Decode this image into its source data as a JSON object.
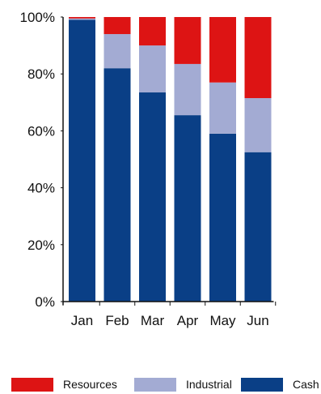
{
  "chart_data": {
    "type": "bar",
    "stacked": true,
    "categories": [
      "Jan",
      "Feb",
      "Mar",
      "Apr",
      "May",
      "Jun"
    ],
    "series": [
      {
        "name": "Cash",
        "color": "#0a3f86",
        "values": [
          99,
          82,
          73.5,
          65.5,
          59,
          52.5
        ]
      },
      {
        "name": "Industrial",
        "color": "#a3abd3",
        "values": [
          0.5,
          12,
          16.5,
          18,
          18,
          19
        ]
      },
      {
        "name": "Resources",
        "color": "#dd1414",
        "values": [
          0.5,
          6,
          10,
          16.5,
          23,
          28.5
        ]
      }
    ],
    "ylim": [
      0,
      100
    ],
    "yticks": [
      "0%",
      "20%",
      "40%",
      "60%",
      "80%",
      "100%"
    ],
    "grid": false,
    "legend_position": "bottom"
  }
}
